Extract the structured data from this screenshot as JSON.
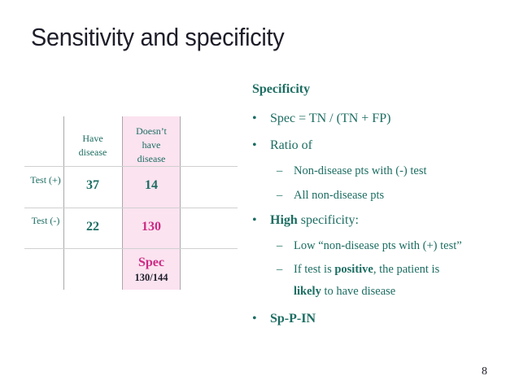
{
  "slide": {
    "title": "Sensitivity and specificity",
    "page_number": "8"
  },
  "table": {
    "col_headers": [
      "Have disease",
      "Doesn’t have disease"
    ],
    "rows": [
      {
        "label": "Test (+)",
        "have": "37",
        "not_have": "14"
      },
      {
        "label": "Test (-)",
        "have": "22",
        "not_have": "130"
      }
    ],
    "spec_label": "Spec",
    "spec_fraction": "130/144"
  },
  "content": {
    "heading": "Specificity",
    "bullet1": "Spec = TN / (TN + FP)",
    "bullet2": "Ratio of",
    "sub2a": "Non-disease pts with (-) test",
    "sub2b": "All non-disease pts",
    "bullet3_bold": "High",
    "bullet3_rest": " specificity:",
    "sub3a": "Low “non-disease pts with (+) test”",
    "sub3b_pre": "If test is ",
    "sub3b_bold": "positive",
    "sub3b_post": ", the patient is",
    "sub3b2_bold": "likely",
    "sub3b2_rest": " to have disease",
    "bullet4": "Sp-P-IN",
    "bullet_symbol": "•",
    "dash_symbol": "–"
  },
  "colors": {
    "teal": "#1c6d62",
    "pink": "#cc2a84",
    "spec_bg": "#fbe3f0"
  }
}
